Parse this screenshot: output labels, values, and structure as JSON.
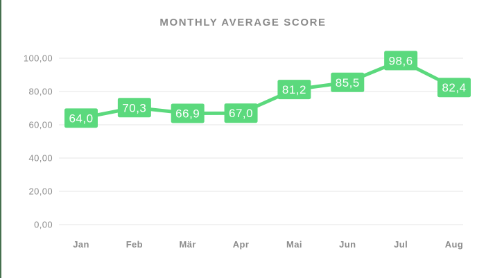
{
  "page": {
    "accent_border_color": "#46704e",
    "title_color": "#8a8a8a"
  },
  "chart_data": {
    "type": "line",
    "title": "MONTHLY AVERAGE SCORE",
    "categories": [
      "Jan",
      "Feb",
      "Mär",
      "Apr",
      "Mai",
      "Jun",
      "Jul",
      "Aug"
    ],
    "values": [
      64.0,
      70.3,
      66.9,
      67.0,
      81.2,
      85.5,
      98.6,
      82.4
    ],
    "value_labels": [
      "64,0",
      "70,3",
      "66,9",
      "67,0",
      "81,2",
      "85,5",
      "98,6",
      "82,4"
    ],
    "y_ticks": [
      {
        "value": 100,
        "label": "100,00"
      },
      {
        "value": 80,
        "label": "80,00"
      },
      {
        "value": 60,
        "label": "60,00"
      },
      {
        "value": 40,
        "label": "40,00"
      },
      {
        "value": 20,
        "label": "20,00"
      },
      {
        "value": 0,
        "label": "0,00"
      }
    ],
    "ylim": [
      0,
      100
    ],
    "xlabel": "",
    "ylabel": "",
    "grid": true,
    "legend": false,
    "series_color": "#5bd97d",
    "label_bg_color": "#5bd97d",
    "label_text_color": "#ffffff",
    "grid_color": "#e9e9e9",
    "axis_text_color": "#8c8c8c"
  }
}
